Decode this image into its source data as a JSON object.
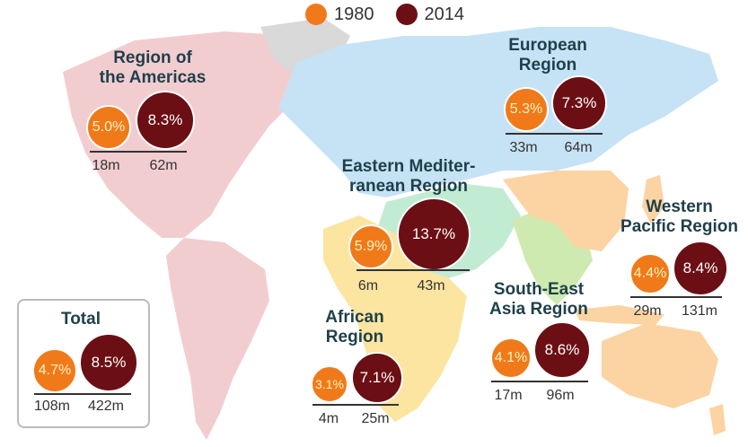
{
  "legend": {
    "label_1980": "1980",
    "label_2014": "2014"
  },
  "colors": {
    "y1980": "#f07a1a",
    "y2014": "#6b0f14",
    "americas": "#f2cdd0",
    "europe": "#c6e2f5",
    "emr": "#c2ebd4",
    "africa": "#fbe5a0",
    "sea": "#cfeab0",
    "wpr": "#fcd3a2"
  },
  "regions": {
    "americas": {
      "name": "Region of the Americas",
      "line1": "Region of",
      "line2": "the Americas",
      "p1980": "5.0%",
      "p2014": "8.3%",
      "n1980": "18m",
      "n2014": "62m"
    },
    "europe": {
      "name": "European Region",
      "line1": "European",
      "line2": "Region",
      "p1980": "5.3%",
      "p2014": "7.3%",
      "n1980": "33m",
      "n2014": "64m"
    },
    "emr": {
      "name": "Eastern Mediterranean Region",
      "line1": "Eastern Mediter-",
      "line2": "ranean Region",
      "p1980": "5.9%",
      "p2014": "13.7%",
      "n1980": "6m",
      "n2014": "43m"
    },
    "wpr": {
      "name": "Western Pacific Region",
      "line1": "Western",
      "line2": "Pacific Region",
      "p1980": "4.4%",
      "p2014": "8.4%",
      "n1980": "29m",
      "n2014": "131m"
    },
    "africa": {
      "name": "African Region",
      "line1": "African",
      "line2": "Region",
      "p1980": "3.1%",
      "p2014": "7.1%",
      "n1980": "4m",
      "n2014": "25m"
    },
    "sea": {
      "name": "South-East Asia Region",
      "line1": "South-East",
      "line2": "Asia Region",
      "p1980": "4.1%",
      "p2014": "8.6%",
      "n1980": "17m",
      "n2014": "96m"
    },
    "total": {
      "name": "Total",
      "p1980": "4.7%",
      "p2014": "8.5%",
      "n1980": "108m",
      "n2014": "422m"
    }
  }
}
